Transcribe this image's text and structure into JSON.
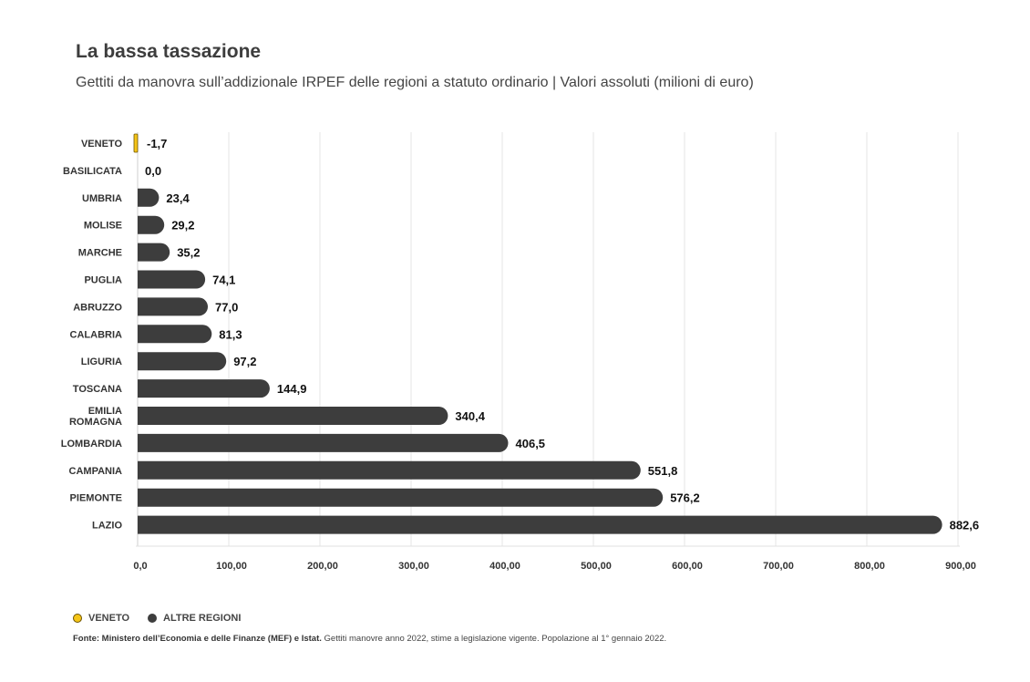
{
  "title": "La bassa tassazione",
  "subtitle": "Gettiti da manovra sull’addizionale IRPEF delle regioni a statuto ordinario |  Valori assoluti (milioni di euro)",
  "legend": {
    "highlight": "VENETO",
    "others": "ALTRE REGIONI"
  },
  "source": {
    "bold": "Fonte: Ministero dell’Economia e delle Finanze (MEF) e Istat.",
    "rest": " Gettiti manovre anno 2022, stime a legislazione vigente. Popolazione al 1° gennaio 2022."
  },
  "colors": {
    "highlight": "#f5c518",
    "others": "#3d3d3d",
    "grid": "#e6e6e6"
  },
  "chart_data": {
    "type": "bar",
    "orientation": "horizontal",
    "title": "La bassa tassazione",
    "subtitle": "Gettiti da manovra sull’addizionale IRPEF delle regioni a statuto ordinario |  Valori assoluti (milioni di euro)",
    "categories": [
      "VENETO",
      "BASILICATA",
      "UMBRIA",
      "MOLISE",
      "MARCHE",
      "PUGLIA",
      "ABRUZZO",
      "CALABRIA",
      "LIGURIA",
      "TOSCANA",
      "EMILIA ROMAGNA",
      "LOMBARDIA",
      "CAMPANIA",
      "PIEMONTE",
      "LAZIO"
    ],
    "values": [
      -1.7,
      0.0,
      23.4,
      29.2,
      35.2,
      74.1,
      77.0,
      81.3,
      97.2,
      144.9,
      340.4,
      406.5,
      551.8,
      576.2,
      882.6
    ],
    "value_labels": [
      "-1,7",
      "0,0",
      "23,4",
      "29,2",
      "35,2",
      "74,1",
      "77,0",
      "81,3",
      "97,2",
      "144,9",
      "340,4",
      "406,5",
      "551,8",
      "576,2",
      "882,6"
    ],
    "highlight": "VENETO",
    "xlim": [
      0,
      900
    ],
    "xticks": [
      "0,0",
      "100,00",
      "200,00",
      "300,00",
      "400,00",
      "500,00",
      "600,00",
      "700,00",
      "800,00",
      "900,00"
    ],
    "grid": true,
    "legend_position": "bottom-left"
  }
}
